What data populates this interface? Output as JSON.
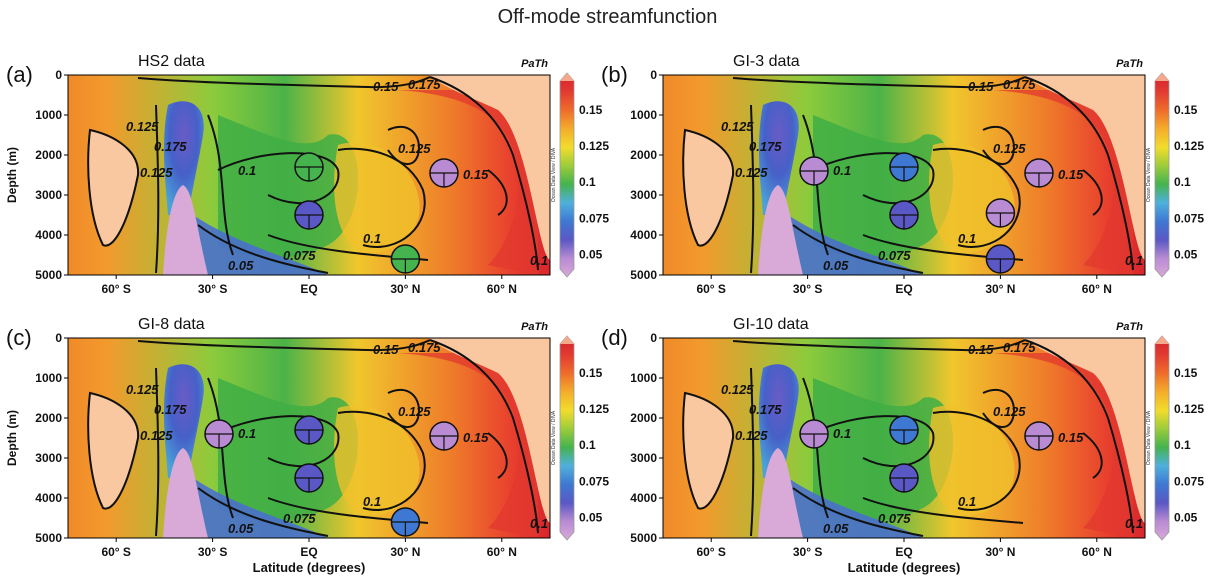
{
  "figure": {
    "title": "Off-mode streamfunction",
    "watermark": "Ocean Data View / DIVA"
  },
  "colors": {
    "colormap": [
      "#d7a6d6",
      "#c98bd0",
      "#7a5fc2",
      "#4a56c0",
      "#3e7ad0",
      "#4fa8de",
      "#4fb86a",
      "#3fb041",
      "#8cc63f",
      "#d8dd2f",
      "#f5c82b",
      "#f39a2a",
      "#ef6f2b",
      "#e8392e",
      "#d61f2e",
      "#f4a98c"
    ],
    "contour": "#111111",
    "land": "#f9c8a0"
  },
  "chart_data": [
    {
      "type": "heatmap",
      "panel_label": "(a)",
      "title": "HS2 data",
      "variable": "PaTh",
      "xlabel": "",
      "ylabel": "Depth (m)",
      "x_ticks": [
        "60° S",
        "30° S",
        "EQ",
        "30° N",
        "60° N"
      ],
      "y_ticks": [
        "0",
        "1000",
        "2000",
        "3000",
        "4000",
        "5000"
      ],
      "xlim": [
        -75,
        75
      ],
      "ylim": [
        5000,
        0
      ],
      "colorbar_ticks": [
        "0.15",
        "0.125",
        "0.1",
        "0.075",
        "0.05"
      ],
      "colorbar_range": [
        0.04,
        0.17
      ],
      "contour_labels": [
        "0.15",
        "0.175",
        "0.125",
        "0.175",
        "0.125",
        "0.1",
        "0.125",
        "0.15",
        "0.075",
        "0.05",
        "0.1",
        "0.1"
      ],
      "sites": [
        {
          "lat": 0,
          "depth": 2300,
          "value": 0.1
        },
        {
          "lat": 0,
          "depth": 3500,
          "value": 0.065
        },
        {
          "lat": 30,
          "depth": 4600,
          "value": 0.095
        },
        {
          "lat": 42,
          "depth": 2450,
          "value": 0.05
        }
      ]
    },
    {
      "type": "heatmap",
      "panel_label": "(b)",
      "title": "GI-3 data",
      "variable": "PaTh",
      "xlabel": "",
      "ylabel": "",
      "x_ticks": [
        "60° S",
        "30° S",
        "EQ",
        "30° N",
        "60° N"
      ],
      "y_ticks": [
        "0",
        "1000",
        "2000",
        "3000",
        "4000",
        "5000"
      ],
      "xlim": [
        -75,
        75
      ],
      "ylim": [
        5000,
        0
      ],
      "colorbar_ticks": [
        "0.15",
        "0.125",
        "0.1",
        "0.075",
        "0.05"
      ],
      "colorbar_range": [
        0.04,
        0.17
      ],
      "contour_labels": [
        "0.15",
        "0.175",
        "0.125",
        "0.175",
        "0.125",
        "0.1",
        "0.125",
        "0.15",
        "0.075",
        "0.05",
        "0.1",
        "0.1"
      ],
      "sites": [
        {
          "lat": -28,
          "depth": 2400,
          "value": 0.055
        },
        {
          "lat": 0,
          "depth": 2300,
          "value": 0.08
        },
        {
          "lat": 0,
          "depth": 3500,
          "value": 0.065
        },
        {
          "lat": 30,
          "depth": 4600,
          "value": 0.065
        },
        {
          "lat": 30,
          "depth": 3450,
          "value": 0.05
        },
        {
          "lat": 42,
          "depth": 2450,
          "value": 0.05
        }
      ]
    },
    {
      "type": "heatmap",
      "panel_label": "(c)",
      "title": "GI-8 data",
      "variable": "PaTh",
      "xlabel": "Latitude (degrees)",
      "ylabel": "Depth (m)",
      "x_ticks": [
        "60° S",
        "30° S",
        "EQ",
        "30° N",
        "60° N"
      ],
      "y_ticks": [
        "0",
        "1000",
        "2000",
        "3000",
        "4000",
        "5000"
      ],
      "xlim": [
        -75,
        75
      ],
      "ylim": [
        5000,
        0
      ],
      "colorbar_ticks": [
        "0.15",
        "0.125",
        "0.1",
        "0.075",
        "0.05"
      ],
      "colorbar_range": [
        0.04,
        0.17
      ],
      "contour_labels": [
        "0.15",
        "0.175",
        "0.125",
        "0.175",
        "0.125",
        "0.1",
        "0.125",
        "0.15",
        "0.075",
        "0.05",
        "0.1",
        "0.1"
      ],
      "sites": [
        {
          "lat": -28,
          "depth": 2400,
          "value": 0.055
        },
        {
          "lat": 0,
          "depth": 2300,
          "value": 0.065
        },
        {
          "lat": 0,
          "depth": 3500,
          "value": 0.065
        },
        {
          "lat": 30,
          "depth": 4600,
          "value": 0.08
        },
        {
          "lat": 42,
          "depth": 2450,
          "value": 0.05
        }
      ]
    },
    {
      "type": "heatmap",
      "panel_label": "(d)",
      "title": "GI-10 data",
      "variable": "PaTh",
      "xlabel": "Latitude (degrees)",
      "ylabel": "",
      "x_ticks": [
        "60° S",
        "30° S",
        "EQ",
        "30° N",
        "60° N"
      ],
      "y_ticks": [
        "0",
        "1000",
        "2000",
        "3000",
        "4000",
        "5000"
      ],
      "xlim": [
        -75,
        75
      ],
      "ylim": [
        5000,
        0
      ],
      "colorbar_ticks": [
        "0.15",
        "0.125",
        "0.1",
        "0.075",
        "0.05"
      ],
      "colorbar_range": [
        0.04,
        0.17
      ],
      "contour_labels": [
        "0.15",
        "0.175",
        "0.125",
        "0.175",
        "0.125",
        "0.1",
        "0.125",
        "0.15",
        "0.075",
        "0.05",
        "0.1",
        "0.1"
      ],
      "sites": [
        {
          "lat": -28,
          "depth": 2400,
          "value": 0.055
        },
        {
          "lat": 0,
          "depth": 2300,
          "value": 0.08
        },
        {
          "lat": 0,
          "depth": 3500,
          "value": 0.065
        },
        {
          "lat": 42,
          "depth": 2450,
          "value": 0.05
        }
      ]
    }
  ]
}
